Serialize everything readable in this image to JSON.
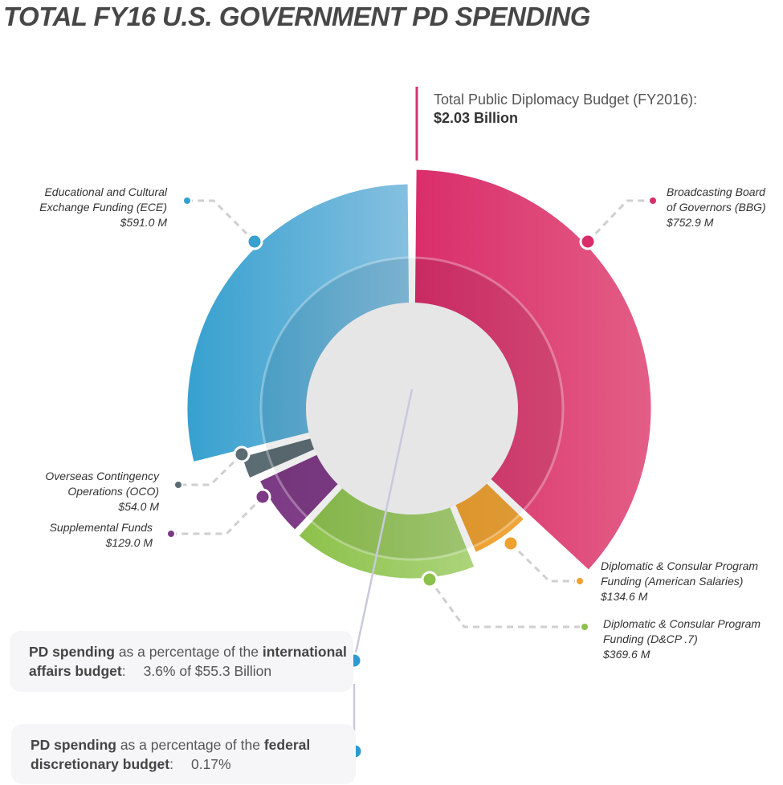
{
  "title": "TOTAL FY16 U.S. GOVERNMENT PD SPENDING",
  "total": {
    "label": "Total Public Diplomacy Budget (FY2016):",
    "value": "$2.03 Billion"
  },
  "chart_data": {
    "type": "pie",
    "title": "TOTAL FY16 U.S. GOVERNMENT PD SPENDING",
    "unit": "$ M",
    "slices": [
      {
        "label": "Broadcasting Board of Governors (BBG)",
        "line1": "Broadcasting Board",
        "line2": "of Governors (BBG)",
        "value": 752.9,
        "display": "$752.9 M",
        "color": "#d92d6a"
      },
      {
        "label": "Diplomatic & Consular Program Funding (American Salaries)",
        "line1": "Diplomatic & Consular Program",
        "line2": "Funding (American Salaries)",
        "value": 134.6,
        "display": "$134.6 M",
        "color": "#eea030"
      },
      {
        "label": "Diplomatic & Consular Program Funding (D&CP .7)",
        "line1": "Diplomatic & Consular Program",
        "line2": "Funding (D&CP .7)",
        "value": 369.6,
        "display": "$369.6 M",
        "color": "#8cc14a"
      },
      {
        "label": "Supplemental Funds",
        "line1": "Supplemental Funds",
        "line2": "",
        "value": 129.0,
        "display": "$129.0 M",
        "color": "#7b3a83"
      },
      {
        "label": "Overseas Contingency Operations (OCO)",
        "line1": "Overseas Contingency",
        "line2": "Operations (OCO)",
        "value": 54.0,
        "display": "$54.0 M",
        "color": "#5a6b72"
      },
      {
        "label": "Educational and Cultural Exchange Funding (ECE)",
        "line1": "Educational and Cultural",
        "line2": "Exchange Funding (ECE)",
        "value": 591.0,
        "display": "$591.0 M",
        "color": "#36a0cf"
      }
    ]
  },
  "stats": [
    {
      "b1": "PD spending",
      "t1": " as a percentage of the ",
      "b2": "international",
      "b3": "affairs budget",
      "t2": ":",
      "value": "3.6% of $55.3 Billion"
    },
    {
      "b1": "PD spending",
      "t1": " as a percentage of the ",
      "b2": "federal",
      "b3": "discretionary budget",
      "t2": ":",
      "value": "0.17%"
    }
  ],
  "colors": {
    "stat_dot": "#2d9bd2",
    "connector": "#c9c9dd",
    "total_line": "#d63370"
  }
}
